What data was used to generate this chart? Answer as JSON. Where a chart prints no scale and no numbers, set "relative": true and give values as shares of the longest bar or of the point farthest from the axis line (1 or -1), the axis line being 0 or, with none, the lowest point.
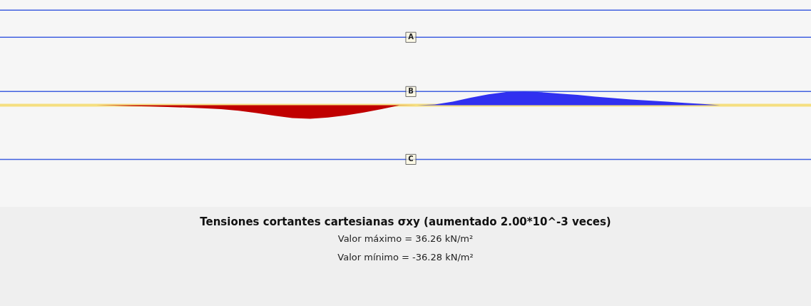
{
  "chart_data": {
    "type": "area",
    "relative": true,
    "title": "Tensiones cortantes cartesianas σxy (aumentado 2.00*10^-3 veces)",
    "annotations": [
      "Valor máximo = 36.26 kN/m²",
      "Valor mínimo = -36.28 kN/m²"
    ],
    "categories": [
      null,
      null,
      null,
      null,
      null,
      null,
      null,
      null,
      null,
      null,
      null,
      null,
      null,
      null,
      null,
      null,
      null,
      null,
      null,
      null,
      null,
      null,
      null,
      null,
      null,
      null,
      null,
      null,
      null,
      null,
      null,
      null,
      null,
      null,
      null,
      null,
      null,
      null,
      null,
      null,
      null,
      null,
      null,
      null,
      null,
      null
    ],
    "series": [
      {
        "color": "#c00000",
        "values": [
          0,
          0,
          0,
          0,
          0,
          0,
          -0.03,
          -0.07,
          -0.1,
          -0.14,
          -0.18,
          -0.23,
          -0.3,
          -0.42,
          -0.58,
          -0.78,
          -0.95,
          -1.0,
          -0.92,
          -0.75,
          -0.55,
          -0.3,
          -0.02,
          0,
          null,
          null,
          null,
          null,
          null,
          null,
          null,
          null,
          null,
          null,
          null,
          null,
          null,
          null,
          null,
          null,
          null,
          null,
          null,
          null,
          null,
          null
        ]
      },
      {
        "color": "#3030f0",
        "values": [
          null,
          null,
          null,
          null,
          null,
          null,
          null,
          null,
          null,
          null,
          null,
          null,
          null,
          null,
          null,
          null,
          null,
          null,
          null,
          null,
          null,
          null,
          null,
          0,
          0.05,
          0.25,
          0.55,
          0.8,
          0.97,
          1.0,
          0.95,
          0.85,
          0.75,
          0.62,
          0.52,
          0.42,
          0.33,
          0.25,
          0.17,
          0.08,
          0,
          0,
          0,
          0,
          0,
          0
        ]
      }
    ],
    "ref_lines": [
      {
        "axis": "y",
        "value": 7.0,
        "label": null,
        "color": "#4060e0"
      },
      {
        "axis": "y",
        "value": 5.0,
        "label": "A",
        "color": "#4060e0"
      },
      {
        "axis": "y",
        "value": 1.0,
        "label": "B",
        "color": "#4060e0"
      },
      {
        "axis": "y",
        "value": 0,
        "label": null,
        "color": "#f5df80"
      },
      {
        "axis": "y",
        "value": -4.0,
        "label": "C",
        "color": "#4060e0"
      }
    ]
  }
}
